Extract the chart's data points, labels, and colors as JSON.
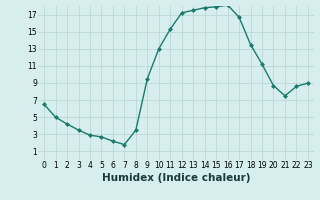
{
  "x": [
    0,
    1,
    2,
    3,
    4,
    5,
    6,
    7,
    8,
    9,
    10,
    11,
    12,
    13,
    14,
    15,
    16,
    17,
    18,
    19,
    20,
    21,
    22,
    23
  ],
  "y": [
    6.5,
    5.0,
    4.2,
    3.5,
    2.9,
    2.7,
    2.2,
    1.8,
    3.5,
    9.5,
    13.0,
    15.3,
    17.2,
    17.5,
    17.8,
    17.9,
    18.1,
    16.7,
    13.5,
    11.2,
    8.7,
    7.5,
    8.6,
    9.0
  ],
  "line_color": "#1a7a6e",
  "marker_color": "#1a7a6e",
  "bg_color": "#d6eeee",
  "grid_color": "#b8d4d4",
  "xlabel": "Humidex (Indice chaleur)",
  "xlim": [
    -0.5,
    23.5
  ],
  "ylim": [
    0,
    18
  ],
  "yticks": [
    1,
    3,
    5,
    7,
    9,
    11,
    13,
    15,
    17
  ],
  "xticks": [
    0,
    1,
    2,
    3,
    4,
    5,
    6,
    7,
    8,
    9,
    10,
    11,
    12,
    13,
    14,
    15,
    16,
    17,
    18,
    19,
    20,
    21,
    22,
    23
  ],
  "tick_fontsize": 5.5,
  "label_fontsize": 7.5
}
